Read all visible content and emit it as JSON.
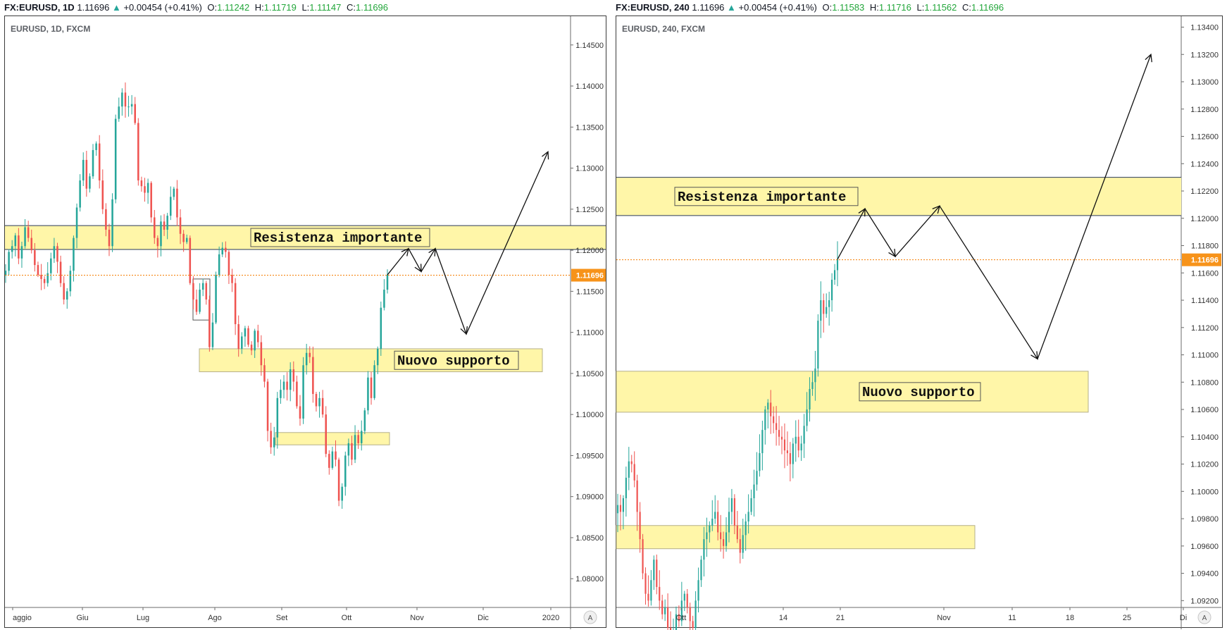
{
  "colors": {
    "up": "#26a69a",
    "down": "#ef5350",
    "zone": "#fff6a8",
    "zone_line": "#2a3a5a",
    "price_line": "#f57c00",
    "badge": "#f7931a"
  },
  "panels": [
    {
      "header": {
        "symbol": "FX:EURUSD, 1D",
        "price": "1.11696",
        "change": "+0.00454 (+0.41%)",
        "o_label": "O:",
        "o": "1.11242",
        "h_label": "H:",
        "h": "1.11719",
        "l_label": "L:",
        "l": "1.11147",
        "c_label": "C:",
        "c": "1.11696"
      },
      "title": "EURUSD, 1D, FXCM",
      "price_badge": "1.11696",
      "auto_button": "A",
      "annotations": [
        "Resistenza importante",
        "Nuovo supporto"
      ]
    },
    {
      "header": {
        "symbol": "FX:EURUSD, 240",
        "price": "1.11696",
        "change": "+0.00454 (+0.41%)",
        "o_label": "O:",
        "o": "1.11583",
        "h_label": "H:",
        "h": "1.11716",
        "l_label": "L:",
        "l": "1.11562",
        "c_label": "C:",
        "c": "1.11696"
      },
      "title": "EURUSD, 240, FXCM",
      "price_badge": "1.11696",
      "auto_button": "A",
      "annotations": [
        "Resistenza importante",
        "Nuovo supporto"
      ]
    }
  ],
  "chart_data": [
    {
      "type": "candlestick",
      "title": "EURUSD, 1D, FXCM",
      "y_ticks": [
        "1.14500",
        "1.14000",
        "1.13500",
        "1.13000",
        "1.12500",
        "1.12000",
        "1.11500",
        "1.11000",
        "1.10500",
        "1.10000",
        "1.09500",
        "1.09000",
        "1.08500",
        "1.08000"
      ],
      "x_ticks": [
        "aggio",
        "Giu",
        "Lug",
        "Ago",
        "Set",
        "Ott",
        "Nov",
        "Dic",
        "2020"
      ],
      "ylim": [
        1.0765,
        1.1485
      ],
      "last_price": 1.11696,
      "grid": false,
      "candles_close": [
        1.1175,
        1.1198,
        1.1205,
        1.1218,
        1.119,
        1.1205,
        1.1228,
        1.1215,
        1.12,
        1.1182,
        1.117,
        1.1165,
        1.116,
        1.1172,
        1.119,
        1.1205,
        1.1186,
        1.116,
        1.114,
        1.115,
        1.1175,
        1.1215,
        1.1252,
        1.1285,
        1.131,
        1.1275,
        1.129,
        1.1322,
        1.133,
        1.1285,
        1.125,
        1.1225,
        1.1205,
        1.1262,
        1.136,
        1.1375,
        1.1392,
        1.1375,
        1.1375,
        1.1378,
        1.1355,
        1.1285,
        1.1278,
        1.127,
        1.1282,
        1.124,
        1.1215,
        1.1205,
        1.1235,
        1.1225,
        1.1242,
        1.1265,
        1.1275,
        1.124,
        1.122,
        1.121,
        1.1215,
        1.116,
        1.114,
        1.1125,
        1.1152,
        1.116,
        1.114,
        1.1082,
        1.1112,
        1.117,
        1.1195,
        1.1203,
        1.1198,
        1.117,
        1.116,
        1.111,
        1.108,
        1.1095,
        1.1105,
        1.1085,
        1.1078,
        1.1102,
        1.1088,
        1.106,
        1.104,
        1.098,
        1.096,
        1.0972,
        1.102,
        1.103,
        1.104,
        1.103,
        1.1055,
        1.104,
        1.101,
        1.0995,
        1.106,
        1.1075,
        1.107,
        1.1025,
        1.101,
        1.102,
        1.1,
        1.0952,
        1.0935,
        1.0955,
        1.0945,
        1.0895,
        1.0912,
        1.095,
        1.0965,
        1.0945,
        1.0975,
        1.0965,
        1.098,
        1.1005,
        1.1045,
        1.102,
        1.106,
        1.108,
        1.113,
        1.1152,
        1.117
      ],
      "zones": [
        {
          "label": "Resistenza importante",
          "low": 1.1201,
          "high": 1.123
        },
        {
          "label": "Nuovo supporto",
          "low": 1.1052,
          "high": 1.108
        },
        {
          "label": "",
          "low": 1.0963,
          "high": 1.0978
        }
      ],
      "forecast_path": [
        1.117,
        1.1202,
        1.1174,
        1.1202,
        1.1098,
        1.132
      ]
    },
    {
      "type": "candlestick",
      "title": "EURUSD, 240, FXCM",
      "y_ticks": [
        "1.13400",
        "1.13200",
        "1.13000",
        "1.12800",
        "1.12600",
        "1.12400",
        "1.12200",
        "1.12000",
        "1.11800",
        "1.11600",
        "1.11400",
        "1.11200",
        "1.11000",
        "1.10800",
        "1.10600",
        "1.10400",
        "1.10200",
        "1.10000",
        "1.09800",
        "1.09600",
        "1.09400",
        "1.09200"
      ],
      "x_ticks": [
        "Ott",
        "14",
        "21",
        "Nov",
        "11",
        "18",
        "25",
        "Di"
      ],
      "ylim": [
        1.0915,
        1.1348
      ],
      "last_price": 1.11696,
      "grid": false,
      "candles_close": [
        1.099,
        1.0985,
        1.0995,
        1.101,
        1.1022,
        1.102,
        1.1008,
        1.0985,
        1.0965,
        1.094,
        1.0925,
        1.092,
        1.0935,
        1.095,
        1.093,
        1.092,
        1.091,
        1.0915,
        1.09,
        1.089,
        1.0895,
        1.091,
        1.0905,
        1.092,
        1.0925,
        1.0915,
        1.0905,
        1.09,
        1.092,
        1.0935,
        1.095,
        1.0965,
        1.097,
        1.0975,
        1.098,
        1.0985,
        1.097,
        1.0965,
        1.096,
        1.097,
        1.0985,
        1.0995,
        1.0975,
        1.0965,
        1.0955,
        1.0968,
        1.0978,
        1.0985,
        1.0995,
        1.1005,
        1.1015,
        1.1028,
        1.1045,
        1.106,
        1.1065,
        1.1055,
        1.105,
        1.1045,
        1.104,
        1.1038,
        1.103,
        1.1028,
        1.102,
        1.1035,
        1.104,
        1.103,
        1.1035,
        1.1048,
        1.106,
        1.1075,
        1.108,
        1.109,
        1.1125,
        1.114,
        1.113,
        1.1135,
        1.114,
        1.1155,
        1.1162,
        1.117
      ],
      "zones": [
        {
          "label": "Resistenza importante",
          "low": 1.1202,
          "high": 1.123
        },
        {
          "label": "Nuovo supporto",
          "low": 1.1058,
          "high": 1.1088
        },
        {
          "label": "",
          "low": 1.0958,
          "high": 1.0975
        }
      ],
      "forecast_path": [
        1.117,
        1.1207,
        1.1172,
        1.1209,
        1.1097,
        1.132
      ]
    }
  ]
}
